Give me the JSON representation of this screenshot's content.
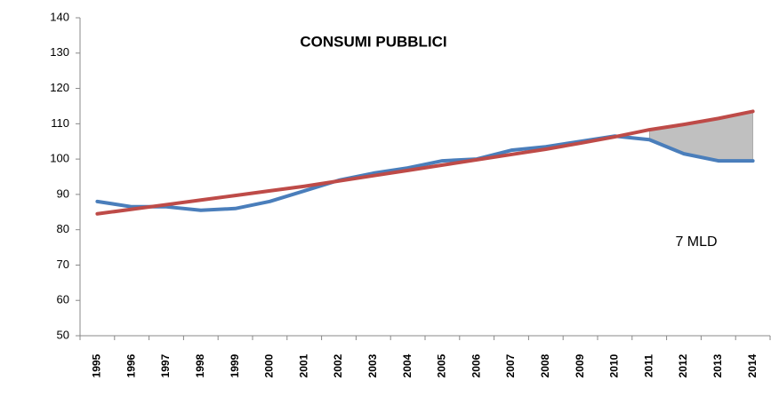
{
  "chart_data": {
    "type": "line",
    "title": "CONSUMI PUBBLICI",
    "annotation": "7 MLD",
    "categories": [
      "1995",
      "1996",
      "1997",
      "1998",
      "1999",
      "2000",
      "2001",
      "2002",
      "2003",
      "2004",
      "2005",
      "2006",
      "2007",
      "2008",
      "2009",
      "2010",
      "2011",
      "2012",
      "2013",
      "2014"
    ],
    "series": [
      {
        "color": "#4a7ebb",
        "values": [
          88,
          86.5,
          86.5,
          85.5,
          86,
          88,
          91,
          94,
          96,
          97.5,
          99.5,
          100,
          102.5,
          103.5,
          105,
          106.5,
          105.5,
          101.5,
          99.5,
          99.5
        ]
      },
      {
        "color": "#be4b48",
        "values": [
          84.5,
          85.8,
          87.1,
          88.4,
          89.7,
          91,
          92.3,
          93.8,
          95.3,
          96.8,
          98.3,
          99.8,
          101.3,
          102.8,
          104.5,
          106.3,
          108.3,
          109.8,
          111.5,
          113.5
        ]
      }
    ],
    "gap_color": "#c0c0c0",
    "ylim": [
      50,
      140
    ],
    "yticks": [
      50,
      60,
      70,
      80,
      90,
      100,
      110,
      120,
      130,
      140
    ],
    "grid": false
  }
}
